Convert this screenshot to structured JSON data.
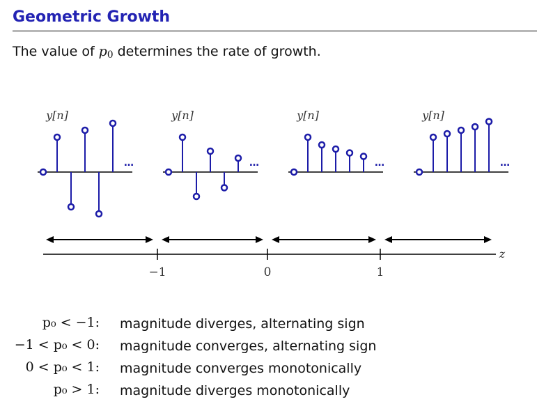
{
  "slide": {
    "title": "Geometric Growth",
    "intro": {
      "before": "The value of ",
      "symbol": "p",
      "subscript": "0",
      "after": " determines the rate of growth."
    }
  },
  "panels": [
    {
      "label": "y[n]",
      "values": [
        0,
        1,
        -1,
        1.2,
        -1.2,
        1.4
      ],
      "ellipsis": "…"
    },
    {
      "label": "y[n]",
      "values": [
        0,
        1,
        -0.7,
        0.6,
        -0.45,
        0.4
      ],
      "ellipsis": "…"
    },
    {
      "label": "y[n]",
      "values": [
        0,
        1,
        0.78,
        0.66,
        0.55,
        0.45
      ],
      "ellipsis": "…"
    },
    {
      "label": "y[n]",
      "values": [
        0,
        1,
        1.1,
        1.2,
        1.3,
        1.45
      ],
      "ellipsis": "…"
    }
  ],
  "axis": {
    "name": "z",
    "ticks": [
      "−1",
      "0",
      "1"
    ]
  },
  "cases": [
    {
      "condition": "p₀ < −1:",
      "description": "magnitude diverges, alternating sign"
    },
    {
      "condition": "−1 < p₀ < 0:",
      "description": "magnitude converges, alternating sign"
    },
    {
      "condition": "0 < p₀ < 1:",
      "description": "magnitude converges monotonically"
    },
    {
      "condition": "p₀ > 1:",
      "description": "magnitude diverges monotonically"
    }
  ],
  "colors": {
    "stem": "#1c1ca8",
    "title": "#2323b3",
    "axis": "#000000"
  }
}
